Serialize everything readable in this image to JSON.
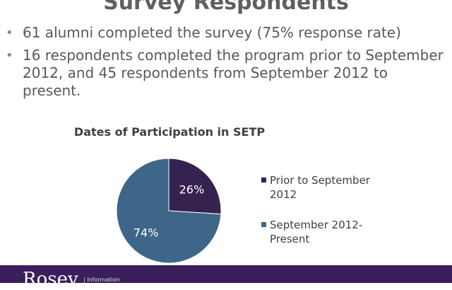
{
  "slide": {
    "title": "Survey Respondents",
    "bullets": [
      "61 alumni completed the survey (75% response rate)",
      "16 respondents completed the program prior to September 2012, and 45 respondents from September 2012 to present."
    ],
    "bullet_glyph": "•"
  },
  "chart_data": {
    "type": "pie",
    "title": "Dates of Participation in SETP",
    "categories": [
      "Prior to September 2012",
      "September 2012-Present"
    ],
    "values": [
      26,
      74
    ],
    "data_labels": [
      "26%",
      "74%"
    ],
    "colors": [
      "#35224f",
      "#3d6688"
    ],
    "legend_position": "right"
  },
  "footer": {
    "logo": "Rosey",
    "logo_sub": "| Information"
  }
}
